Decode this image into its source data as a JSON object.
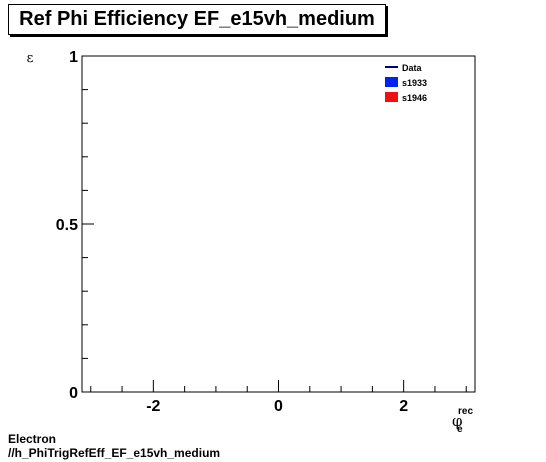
{
  "title": "Ref Phi Efficiency EF_e15vh_medium",
  "footer": {
    "line1": "Electron",
    "line2": "//h_PhiTrigRefEff_EF_e15vh_medium"
  },
  "chart_data": {
    "type": "line",
    "title": "Ref Phi Efficiency EF_e15vh_medium",
    "ylabel_symbol": "ε",
    "xlabel": {
      "base": "φ",
      "sup": "rec",
      "sub": "e"
    },
    "xlim": [
      -3.14,
      3.14
    ],
    "ylim": [
      0,
      1
    ],
    "x_ticks": [
      -2,
      0,
      2
    ],
    "y_ticks": [
      0,
      0.5,
      1
    ],
    "y_tick_labels": [
      "0",
      "0.5",
      "1"
    ],
    "grid": false,
    "legend_position": "top-right",
    "series": [
      {
        "name": "Data",
        "color": "#00007f",
        "style": "line",
        "points": []
      },
      {
        "name": "s1933",
        "color": "#0022ee",
        "style": "box",
        "points": []
      },
      {
        "name": "s1946",
        "color": "#ee1111",
        "style": "box",
        "points": []
      }
    ]
  }
}
